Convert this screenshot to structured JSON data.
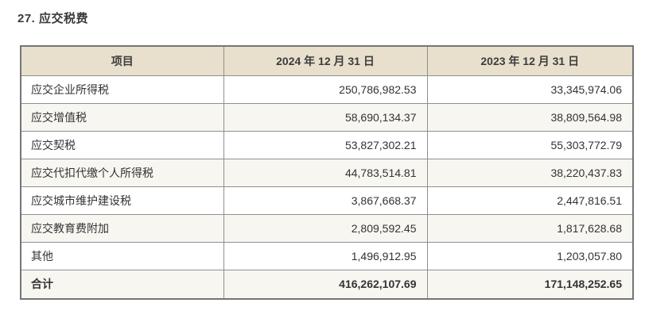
{
  "page": {
    "title": "27. 应交税费"
  },
  "table": {
    "columns": [
      "项目",
      "2024 年 12 月 31 日",
      "2023 年 12 月 31 日"
    ],
    "rows": [
      {
        "label": "应交企业所得税",
        "y2024": "250,786,982.53",
        "y2023": "33,345,974.06"
      },
      {
        "label": "应交增值税",
        "y2024": "58,690,134.37",
        "y2023": "38,809,564.98"
      },
      {
        "label": "应交契税",
        "y2024": "53,827,302.21",
        "y2023": "55,303,772.79"
      },
      {
        "label": "应交代扣代缴个人所得税",
        "y2024": "44,783,514.81",
        "y2023": "38,220,437.83"
      },
      {
        "label": "应交城市维护建设税",
        "y2024": "3,867,668.37",
        "y2023": "2,447,816.51"
      },
      {
        "label": "应交教育费附加",
        "y2024": "2,809,592.45",
        "y2023": "1,817,628.68"
      },
      {
        "label": "其他",
        "y2024": "1,496,912.95",
        "y2023": "1,203,057.80"
      }
    ],
    "total": {
      "label": "合计",
      "y2024": "416,262,107.69",
      "y2023": "171,148,252.65"
    }
  },
  "colors": {
    "header_bg": "#e8e0cd",
    "stripe_bg": "#f8f6f1",
    "border": "#8f8f8f",
    "outer_border": "#757575",
    "text": "#333333"
  }
}
